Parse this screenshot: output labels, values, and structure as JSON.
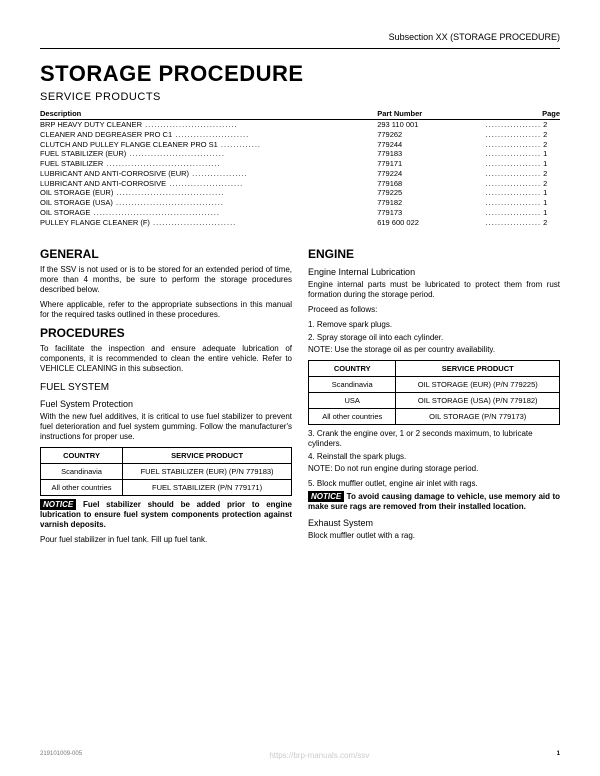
{
  "header": "Subsection XX (STORAGE PROCEDURE)",
  "title": "STORAGE PROCEDURE",
  "subtitle": "SERVICE PRODUCTS",
  "parts": {
    "headers": [
      "Description",
      "Part Number",
      "Page"
    ],
    "rows": [
      {
        "desc": "BRP HEAVY DUTY CLEANER",
        "pn": "293 110 001",
        "pg": "2"
      },
      {
        "desc": "CLEANER AND DEGREASER PRO C1",
        "pn": "779262",
        "pg": "2"
      },
      {
        "desc": "CLUTCH AND PULLEY FLANGE CLEANER PRO S1",
        "pn": "779244",
        "pg": "2"
      },
      {
        "desc": "FUEL STABILIZER (EUR)",
        "pn": "779183",
        "pg": "1"
      },
      {
        "desc": "FUEL STABILIZER",
        "pn": "779171",
        "pg": "1"
      },
      {
        "desc": "LUBRICANT AND ANTI-CORROSIVE (EUR)",
        "pn": "779224",
        "pg": "2"
      },
      {
        "desc": "LUBRICANT AND ANTI-CORROSIVE",
        "pn": "779168",
        "pg": "2"
      },
      {
        "desc": "OIL STORAGE (EUR)",
        "pn": "779225",
        "pg": "1"
      },
      {
        "desc": "OIL STORAGE (USA)",
        "pn": "779182",
        "pg": "1"
      },
      {
        "desc": "OIL STORAGE",
        "pn": "779173",
        "pg": "1"
      },
      {
        "desc": "PULLEY FLANGE CLEANER (F)",
        "pn": "619 600 022",
        "pg": "2"
      }
    ]
  },
  "left": {
    "general_h": "GENERAL",
    "general_p1": "If the SSV is not used or is to be stored for an extended period of time, more than 4 months, be sure to perform the storage procedures described below.",
    "general_p2": "Where applicable, refer to the appropriate subsections in this manual for the required tasks outlined in these procedures.",
    "proc_h": "PROCEDURES",
    "proc_p": "To facilitate the inspection and ensure adequate lubrication of components, it is recommended to clean the entire vehicle. Refer to VEHICLE CLEANING in this subsection.",
    "fuel_h": "FUEL SYSTEM",
    "fuel_sub": "Fuel System Protection",
    "fuel_p": "With the new fuel additives, it is critical to use fuel stabilizer to prevent fuel deterioration and fuel system gumming. Follow the manufacturer's instructions for proper use.",
    "fuel_table": {
      "h1": "COUNTRY",
      "h2": "SERVICE PRODUCT",
      "r1c1": "Scandinavia",
      "r1c2": "FUEL STABILIZER (EUR) (P/N 779183)",
      "r2c1": "All other countries",
      "r2c2": "FUEL STABILIZER (P/N 779171)"
    },
    "notice_label": "NOTICE",
    "notice_text": " Fuel stabilizer should be added prior to engine lubrication to ensure fuel system components protection against varnish deposits.",
    "fuel_p2": "Pour fuel stabilizer in fuel tank. Fill up fuel tank."
  },
  "right": {
    "engine_h": "ENGINE",
    "engine_sub": "Engine Internal Lubrication",
    "engine_p1": "Engine internal parts must be lubricated to protect them from rust formation during the storage period.",
    "engine_p2": "Proceed as follows:",
    "step1": "1. Remove spark plugs.",
    "step2": "2. Spray storage oil into each cylinder.",
    "note1": "NOTE: Use the storage oil as per country availability.",
    "oil_table": {
      "h1": "COUNTRY",
      "h2": "SERVICE PRODUCT",
      "r1c1": "Scandinavia",
      "r1c2": "OIL STORAGE (EUR) (P/N 779225)",
      "r2c1": "USA",
      "r2c2": "OIL STORAGE (USA) (P/N 779182)",
      "r3c1": "All other countries",
      "r3c2": "OIL STORAGE (P/N 779173)"
    },
    "step3": "3. Crank the engine over, 1 or 2 seconds maximum, to lubricate cylinders.",
    "step4": "4. Reinstall the spark plugs.",
    "note2": "NOTE: Do not run engine during storage period.",
    "step5": "5. Block muffler outlet, engine air inlet with rags.",
    "notice_label": "NOTICE",
    "notice_text": " To avoid causing damage to vehicle, use memory aid to make sure rags are removed from their installed location.",
    "exhaust_h": "Exhaust System",
    "exhaust_p": "Block muffler outlet with a rag."
  },
  "footer": {
    "code": "219101009-005",
    "watermark": "https://brp-manuals.com/ssv",
    "page": "1"
  }
}
